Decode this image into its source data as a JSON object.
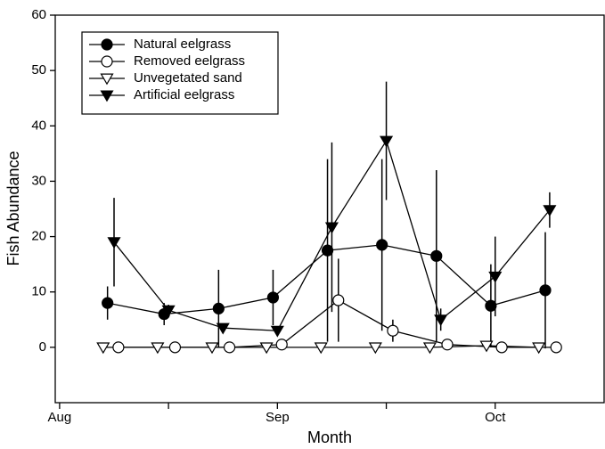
{
  "chart_data": {
    "type": "line",
    "x_label": "Month",
    "y_label": "Fish Abundance",
    "xlim": [
      -0.02,
      2.5
    ],
    "ylim": [
      -10,
      60
    ],
    "xticks": [
      {
        "value": 0,
        "label": "Aug"
      },
      {
        "value": 1,
        "label": "Sep"
      },
      {
        "value": 2,
        "label": "Oct"
      }
    ],
    "xminorticks": [
      0.5,
      1.5
    ],
    "yticks": [
      0,
      10,
      20,
      30,
      40,
      50,
      60
    ],
    "legend": "upper-left",
    "series": [
      {
        "name": "Natural eelgrass",
        "color": "#000000",
        "marker": "circle",
        "filled": true,
        "x": [
          0.22,
          0.48,
          0.73,
          0.98,
          1.23,
          1.48,
          1.73,
          1.98,
          2.23
        ],
        "values": [
          8,
          6,
          7,
          9,
          17.5,
          18.5,
          16.5,
          7.5,
          10.3
        ],
        "errors": [
          3,
          2,
          7,
          5,
          16.5,
          15.5,
          15.5,
          7.5,
          10.5
        ]
      },
      {
        "name": "Removed eelgrass",
        "color": "#000000",
        "marker": "circle",
        "filled": false,
        "x": [
          0.27,
          0.53,
          0.78,
          1.02,
          1.28,
          1.53,
          1.78,
          2.03,
          2.28
        ],
        "values": [
          0,
          0,
          0,
          0.5,
          8.5,
          3,
          0.5,
          0,
          0
        ],
        "errors": [
          0,
          0,
          0,
          0,
          7.5,
          2,
          0,
          0,
          0
        ]
      },
      {
        "name": "Unvegetated sand",
        "color": "#000000",
        "marker": "triangle-down",
        "filled": false,
        "x": [
          0.2,
          0.45,
          0.7,
          0.95,
          1.2,
          1.45,
          1.7,
          1.96,
          2.2
        ],
        "values": [
          0,
          0,
          0,
          0,
          0,
          0,
          0,
          0.3,
          0
        ]
      },
      {
        "name": "Artificial eelgrass",
        "color": "#000000",
        "marker": "triangle-down",
        "filled": true,
        "x": [
          0.25,
          0.5,
          0.75,
          1.0,
          1.25,
          1.5,
          1.75,
          2.0,
          2.25
        ],
        "values": [
          19,
          6.7,
          3.5,
          3,
          21.7,
          37.3,
          5,
          12.8,
          24.8
        ],
        "errors": [
          8,
          1,
          0,
          0,
          15.3,
          10.7,
          2,
          7.2,
          3.2
        ]
      }
    ]
  }
}
